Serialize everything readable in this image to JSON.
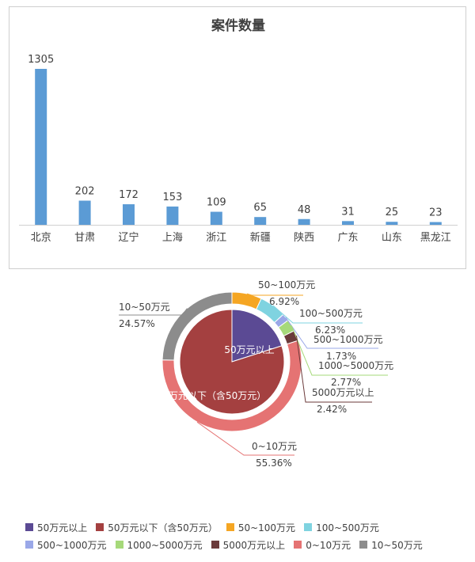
{
  "chart_data": [
    {
      "type": "bar",
      "title": "案件数量",
      "categories": [
        "北京",
        "甘肃",
        "辽宁",
        "上海",
        "浙江",
        "新疆",
        "陕西",
        "广东",
        "山东",
        "黑龙江"
      ],
      "values": [
        1305,
        202,
        172,
        153,
        109,
        65,
        48,
        31,
        25,
        23
      ],
      "ylim": [
        0,
        1305
      ],
      "grid": false,
      "color": "#5b9bd5"
    },
    {
      "type": "pie",
      "style": "nested-donut",
      "inner": {
        "categories": [
          "50万元以上",
          "50万元以下（含50万元）"
        ],
        "colors": [
          "#5b4a94",
          "#a44040"
        ]
      },
      "outer": {
        "categories": [
          "0~10万元",
          "10~50万元",
          "50~100万元",
          "100~500万元",
          "500~1000万元",
          "1000~5000万元",
          "5000万元以上"
        ],
        "values": [
          55.36,
          24.57,
          6.92,
          6.23,
          1.73,
          2.77,
          2.42
        ],
        "labels": [
          "55.36%",
          "24.57%",
          "6.92%",
          "6.23%",
          "1.73%",
          "2.77%",
          "2.42%"
        ],
        "colors": [
          "#e57373",
          "#8c8c8c",
          "#f5a623",
          "#7fd3e0",
          "#9aa8e8",
          "#a6d97a",
          "#6b3a3a"
        ]
      },
      "legend": {
        "position": "bottom",
        "entries": [
          {
            "label": "50万元以上",
            "color": "#5b4a94"
          },
          {
            "label": "50万元以下（含50万元）",
            "color": "#a44040"
          },
          {
            "label": "50~100万元",
            "color": "#f5a623"
          },
          {
            "label": "100~500万元",
            "color": "#7fd3e0"
          },
          {
            "label": "500~1000万元",
            "color": "#9aa8e8"
          },
          {
            "label": "1000~5000万元",
            "color": "#a6d97a"
          },
          {
            "label": "5000万元以上",
            "color": "#6b3a3a"
          },
          {
            "label": "0~10万元",
            "color": "#e57373"
          },
          {
            "label": "10~50万元",
            "color": "#8c8c8c"
          }
        ]
      }
    }
  ]
}
